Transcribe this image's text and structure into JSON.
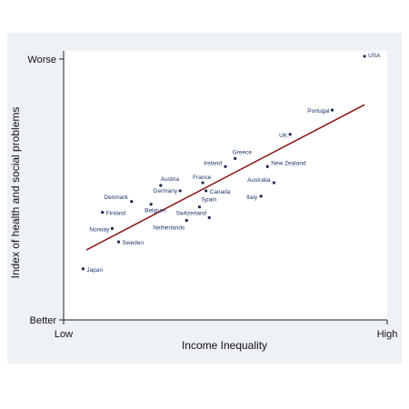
{
  "chart_data": {
    "type": "scatter",
    "title": "",
    "xlabel": "Income Inequality",
    "ylabel": "Index of health and social problems",
    "x_tick_labels": [
      "Low",
      "High"
    ],
    "y_tick_labels": [
      "Worse",
      "Better"
    ],
    "xlim": [
      0,
      100
    ],
    "ylim": [
      0,
      100
    ],
    "grid": false,
    "legend": "none",
    "colors": {
      "outer_background": "#eef1f5",
      "plot_background": "#ffffff",
      "points": "#1a2a4a",
      "labels": "#1c3568",
      "trend_line": "#8e1c1c"
    },
    "points": [
      {
        "label": "USA",
        "x": 93,
        "y": 98
      },
      {
        "label": "Portugal",
        "x": 83,
        "y": 78
      },
      {
        "label": "UK",
        "x": 70,
        "y": 69
      },
      {
        "label": "Greece",
        "x": 53,
        "y": 60
      },
      {
        "label": "Ireland",
        "x": 50,
        "y": 57
      },
      {
        "label": "New Zealand",
        "x": 63,
        "y": 57
      },
      {
        "label": "Australia",
        "x": 65,
        "y": 51
      },
      {
        "label": "Italy",
        "x": 61,
        "y": 46
      },
      {
        "label": "France",
        "x": 43,
        "y": 51
      },
      {
        "label": "Canada",
        "x": 44,
        "y": 48
      },
      {
        "label": "Spain",
        "x": 42,
        "y": 42
      },
      {
        "label": "Switzerland",
        "x": 45,
        "y": 38
      },
      {
        "label": "Austria",
        "x": 30,
        "y": 50
      },
      {
        "label": "Germany",
        "x": 36,
        "y": 48
      },
      {
        "label": "Denmark",
        "x": 21,
        "y": 44
      },
      {
        "label": "Belgium",
        "x": 27,
        "y": 43
      },
      {
        "label": "Netherlands",
        "x": 38,
        "y": 37
      },
      {
        "label": "Finland",
        "x": 12,
        "y": 40
      },
      {
        "label": "Norway",
        "x": 15,
        "y": 34
      },
      {
        "label": "Sweden",
        "x": 17,
        "y": 29
      },
      {
        "label": "Japan",
        "x": 6,
        "y": 19
      }
    ],
    "trend_line": {
      "x": [
        7,
        93
      ],
      "y": [
        26,
        80
      ]
    }
  }
}
